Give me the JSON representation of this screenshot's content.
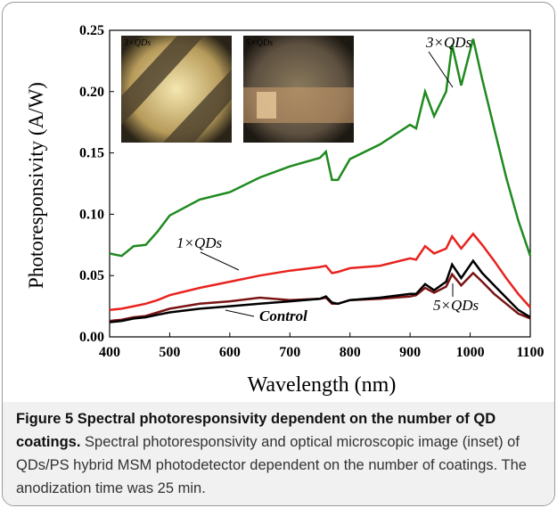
{
  "chart_data": {
    "type": "line",
    "xlabel": "Wavelength (nm)",
    "ylabel": "Photoresponsivity (A/W)",
    "x": [
      400,
      420,
      440,
      460,
      480,
      500,
      550,
      600,
      650,
      700,
      750,
      760,
      770,
      780,
      800,
      850,
      900,
      910,
      925,
      940,
      960,
      970,
      985,
      1005,
      1020,
      1040,
      1060,
      1080,
      1100
    ],
    "series": [
      {
        "name": "3×QDs",
        "color": "#1f8a1f",
        "values": [
          0.068,
          0.066,
          0.074,
          0.075,
          0.086,
          0.099,
          0.112,
          0.118,
          0.13,
          0.139,
          0.146,
          0.151,
          0.128,
          0.128,
          0.145,
          0.157,
          0.173,
          0.17,
          0.2,
          0.18,
          0.2,
          0.238,
          0.205,
          0.243,
          0.21,
          0.17,
          0.13,
          0.095,
          0.066
        ]
      },
      {
        "name": "1×QDs",
        "color": "#e8231e",
        "values": [
          0.022,
          0.023,
          0.025,
          0.027,
          0.03,
          0.034,
          0.04,
          0.045,
          0.05,
          0.054,
          0.057,
          0.058,
          0.052,
          0.053,
          0.056,
          0.058,
          0.064,
          0.063,
          0.074,
          0.068,
          0.072,
          0.082,
          0.072,
          0.084,
          0.075,
          0.062,
          0.048,
          0.035,
          0.024
        ]
      },
      {
        "name": "5×QDs",
        "color": "#7a1414",
        "values": [
          0.013,
          0.014,
          0.016,
          0.017,
          0.02,
          0.023,
          0.027,
          0.029,
          0.032,
          0.03,
          0.031,
          0.032,
          0.027,
          0.027,
          0.03,
          0.031,
          0.033,
          0.034,
          0.04,
          0.036,
          0.041,
          0.051,
          0.042,
          0.052,
          0.045,
          0.035,
          0.027,
          0.019,
          0.015
        ]
      },
      {
        "name": "Control",
        "color": "#000000",
        "values": [
          0.012,
          0.013,
          0.015,
          0.016,
          0.018,
          0.02,
          0.023,
          0.025,
          0.027,
          0.029,
          0.031,
          0.033,
          0.028,
          0.027,
          0.03,
          0.032,
          0.035,
          0.035,
          0.043,
          0.038,
          0.045,
          0.059,
          0.048,
          0.062,
          0.052,
          0.042,
          0.032,
          0.022,
          0.016
        ]
      }
    ],
    "xlim": [
      400,
      1100
    ],
    "xticks": [
      400,
      500,
      600,
      700,
      800,
      900,
      1000,
      1100
    ],
    "ylim": [
      0,
      0.25
    ],
    "yticks": [
      {
        "value": 0,
        "label": "0.00"
      },
      {
        "value": 0.05,
        "label": "0.05"
      },
      {
        "value": 0.1,
        "label": "0.10"
      },
      {
        "value": 0.15,
        "label": "0.15"
      },
      {
        "value": 0.2,
        "label": "0.20"
      },
      {
        "value": 0.25,
        "label": "0.25"
      }
    ],
    "insets": [
      "3×QDs",
      "5×QDs"
    ]
  },
  "caption": {
    "title": "Figure 5 Spectral photoresponsivity dependent on the number of QD coatings.",
    "text": "Spectral photoresponsivity and optical microscopic image (inset) of QDs/PS hybrid MSM photodetector dependent on the number of coatings. The anodization time was 25 min."
  }
}
